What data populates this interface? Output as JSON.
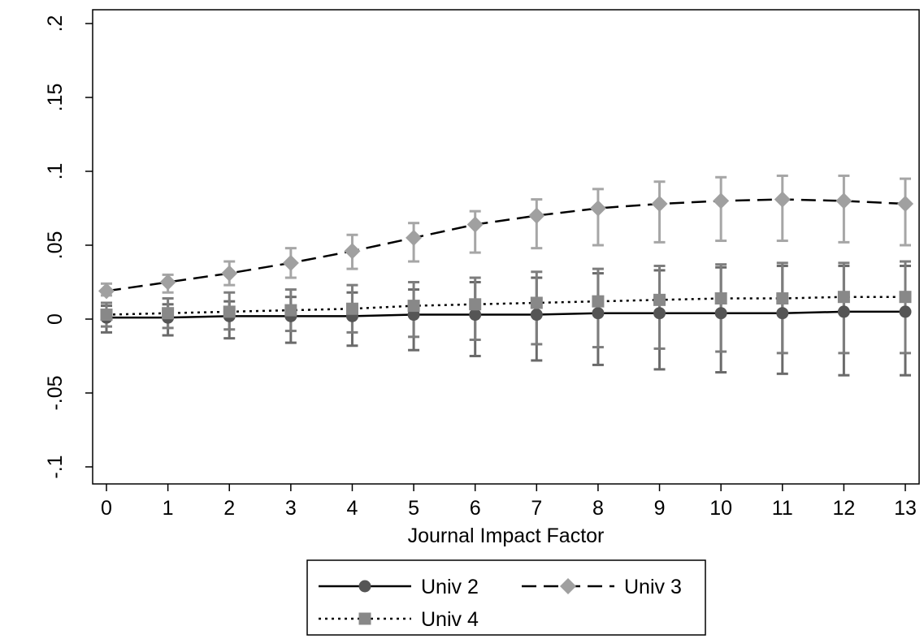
{
  "chart_data": {
    "type": "line",
    "xlabel": "Journal Impact Factor",
    "ylabel": "",
    "x": [
      0,
      1,
      2,
      3,
      4,
      5,
      6,
      7,
      8,
      9,
      10,
      11,
      12,
      13
    ],
    "xlim": [
      0,
      13
    ],
    "ylim": [
      -0.1,
      0.2
    ],
    "xticks": [
      "0",
      "1",
      "2",
      "3",
      "4",
      "5",
      "6",
      "7",
      "8",
      "9",
      "10",
      "11",
      "12",
      "13"
    ],
    "yticks": [
      {
        "value": -0.1,
        "label": "-.1"
      },
      {
        "value": -0.05,
        "label": "-.05"
      },
      {
        "value": 0,
        "label": "0"
      },
      {
        "value": 0.05,
        "label": ".05"
      },
      {
        "value": 0.1,
        "label": ".1"
      },
      {
        "value": 0.15,
        "label": ".15"
      },
      {
        "value": 0.2,
        "label": ".2"
      }
    ],
    "grid": false,
    "legend_position": "bottom",
    "series": [
      {
        "name": "Univ 2",
        "line_style": "solid",
        "marker": "circle",
        "color": "#555555",
        "line_color": "#000000",
        "values": [
          0.001,
          0.001,
          0.002,
          0.002,
          0.002,
          0.003,
          0.003,
          0.003,
          0.004,
          0.004,
          0.004,
          0.004,
          0.005,
          0.005
        ],
        "ci_low": [
          -0.009,
          -0.011,
          -0.013,
          -0.016,
          -0.018,
          -0.021,
          -0.025,
          -0.028,
          -0.031,
          -0.034,
          -0.036,
          -0.037,
          -0.038,
          -0.038
        ],
        "ci_high": [
          0.009,
          0.01,
          0.012,
          0.015,
          0.018,
          0.02,
          0.025,
          0.028,
          0.031,
          0.033,
          0.035,
          0.036,
          0.036,
          0.036
        ]
      },
      {
        "name": "Univ 3",
        "line_style": "dashed",
        "marker": "diamond",
        "color": "#a0a0a0",
        "line_color": "#000000",
        "values": [
          0.019,
          0.025,
          0.031,
          0.038,
          0.046,
          0.055,
          0.064,
          0.07,
          0.075,
          0.078,
          0.08,
          0.081,
          0.08,
          0.078
        ],
        "ci_low": [
          0.016,
          0.018,
          0.023,
          0.028,
          0.034,
          0.039,
          0.045,
          0.048,
          0.05,
          0.052,
          0.053,
          0.053,
          0.052,
          0.05
        ],
        "ci_high": [
          0.024,
          0.03,
          0.039,
          0.048,
          0.057,
          0.065,
          0.073,
          0.081,
          0.088,
          0.093,
          0.096,
          0.097,
          0.097,
          0.095
        ]
      },
      {
        "name": "Univ 4",
        "line_style": "dotted",
        "marker": "square",
        "color": "#888888",
        "line_color": "#000000",
        "values": [
          0.003,
          0.004,
          0.005,
          0.006,
          0.007,
          0.009,
          0.01,
          0.011,
          0.012,
          0.013,
          0.014,
          0.014,
          0.015,
          0.015
        ],
        "ci_low": [
          -0.005,
          -0.006,
          -0.007,
          -0.008,
          -0.009,
          -0.012,
          -0.014,
          -0.017,
          -0.019,
          -0.02,
          -0.022,
          -0.023,
          -0.023,
          -0.023
        ],
        "ci_high": [
          0.011,
          0.014,
          0.018,
          0.02,
          0.023,
          0.025,
          0.028,
          0.032,
          0.034,
          0.036,
          0.037,
          0.038,
          0.038,
          0.039
        ]
      }
    ]
  }
}
